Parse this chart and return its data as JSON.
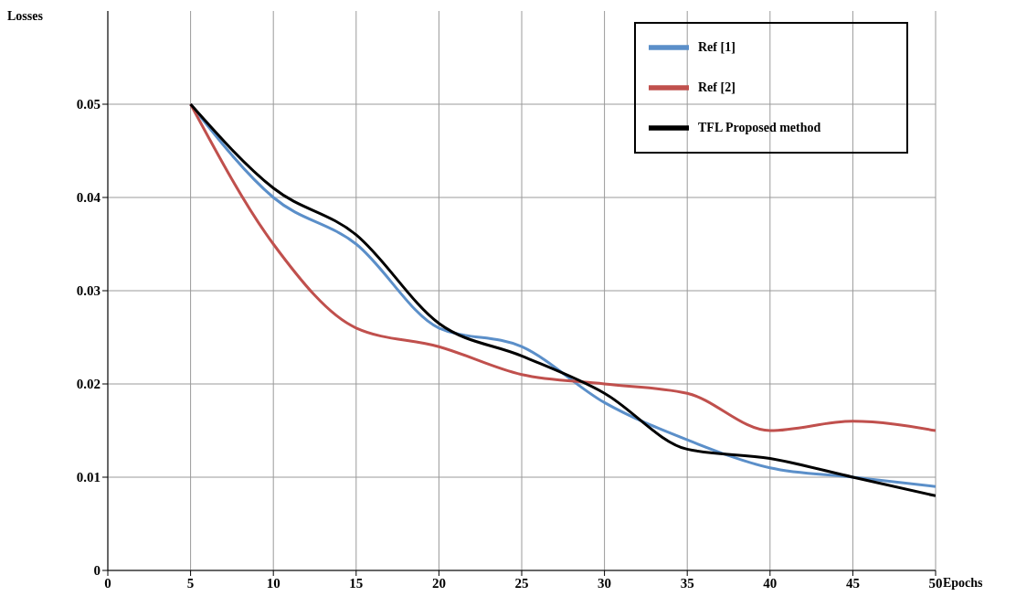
{
  "chart_data": {
    "type": "line",
    "xlabel": "Epochs",
    "ylabel": "Losses",
    "x": [
      5,
      10,
      15,
      20,
      25,
      30,
      35,
      40,
      45,
      50
    ],
    "series": [
      {
        "name": "Ref [1]",
        "color": "#5b8fc9",
        "values": [
          0.05,
          0.04,
          0.035,
          0.026,
          0.024,
          0.018,
          0.014,
          0.011,
          0.01,
          0.009
        ]
      },
      {
        "name": "Ref [2]",
        "color": "#c0504d",
        "values": [
          0.05,
          0.035,
          0.026,
          0.024,
          0.021,
          0.02,
          0.019,
          0.015,
          0.016,
          0.015
        ]
      },
      {
        "name": "TFL Proposed method",
        "color": "#000000",
        "values": [
          0.05,
          0.041,
          0.036,
          0.0265,
          0.023,
          0.019,
          0.013,
          0.012,
          0.01,
          0.008
        ]
      }
    ],
    "xlim": [
      0,
      50
    ],
    "xticks": [
      0,
      5,
      10,
      15,
      20,
      25,
      30,
      35,
      40,
      45,
      50
    ],
    "ylim": [
      0,
      0.06
    ],
    "yticks": [
      0,
      0.01,
      0.02,
      0.03,
      0.04,
      0.05
    ],
    "grid": true,
    "legend": "top right",
    "marker": "none",
    "line_style": "solid"
  }
}
